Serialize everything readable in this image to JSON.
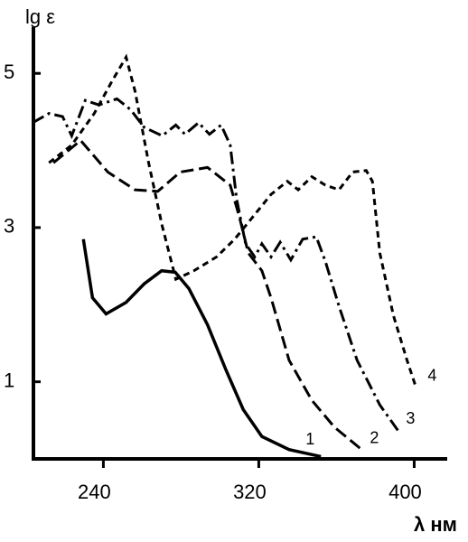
{
  "chart_data": {
    "type": "line",
    "y_label": "lg ε",
    "x_label": "λ нм",
    "xlim": [
      204,
      417
    ],
    "ylim": [
      0,
      5.6
    ],
    "xticks": [
      240,
      320,
      400
    ],
    "yticks": [
      1,
      3,
      5
    ],
    "series": [
      {
        "name": "1",
        "color": "#000000",
        "dash": "solid",
        "x": [
          229.7,
          234.4,
          241.4,
          251.7,
          261.0,
          270.0,
          277.0,
          284.0,
          293.6,
          303.0,
          312.0,
          321.6,
          335.6,
          352.0
        ],
        "values": [
          2.85,
          2.09,
          1.88,
          2.03,
          2.27,
          2.44,
          2.42,
          2.21,
          1.74,
          1.16,
          0.64,
          0.29,
          0.12,
          0.03
        ]
      },
      {
        "name": "2",
        "color": "#000000",
        "dash": "long-dash",
        "x": [
          214.3,
          228.3,
          242.3,
          256.3,
          268.0,
          279.6,
          293.6,
          305.3,
          310.0,
          314.6,
          321.6,
          326.3,
          335.6,
          347.3,
          359.0,
          373.0
        ],
        "values": [
          3.84,
          4.13,
          3.72,
          3.49,
          3.47,
          3.72,
          3.78,
          3.55,
          3.14,
          2.67,
          2.44,
          2.09,
          1.28,
          0.76,
          0.41,
          0.12
        ]
      },
      {
        "name": "3",
        "color": "#000000",
        "dash": "dash-dot",
        "x": [
          203.6,
          212.0,
          219.0,
          223.7,
          230.7,
          237.7,
          247.0,
          254.0,
          261.0,
          270.3,
          277.3,
          282.0,
          289.0,
          294.6,
          300.6,
          305.3,
          308.6,
          313.2,
          317.9,
          321.6,
          326.3,
          331.0,
          336.5,
          342.6,
          349.6,
          354.3,
          361.3,
          370.6,
          382.3,
          391.6
        ],
        "values": [
          4.36,
          4.48,
          4.44,
          4.19,
          4.65,
          4.59,
          4.67,
          4.53,
          4.3,
          4.19,
          4.33,
          4.21,
          4.36,
          4.21,
          4.33,
          4.07,
          3.37,
          2.79,
          2.62,
          2.79,
          2.62,
          2.81,
          2.58,
          2.85,
          2.88,
          2.56,
          1.98,
          1.28,
          0.7,
          0.37
        ]
      },
      {
        "name": "4",
        "color": "#000000",
        "dash": "short-dash",
        "x": [
          212.0,
          223.7,
          235.3,
          244.7,
          251.7,
          256.3,
          263.3,
          270.3,
          277.3,
          286.6,
          298.3,
          307.6,
          317.0,
          326.3,
          334.7,
          340.3,
          347.3,
          354.3,
          361.3,
          368.3,
          375.3,
          378.5,
          382.3,
          389.3,
          396.3,
          400.9
        ],
        "values": [
          3.84,
          4.07,
          4.48,
          4.91,
          5.21,
          4.77,
          3.84,
          3.02,
          2.33,
          2.44,
          2.62,
          2.85,
          3.14,
          3.43,
          3.6,
          3.49,
          3.66,
          3.55,
          3.49,
          3.72,
          3.74,
          3.6,
          2.67,
          1.86,
          1.28,
          0.93
        ]
      }
    ]
  }
}
